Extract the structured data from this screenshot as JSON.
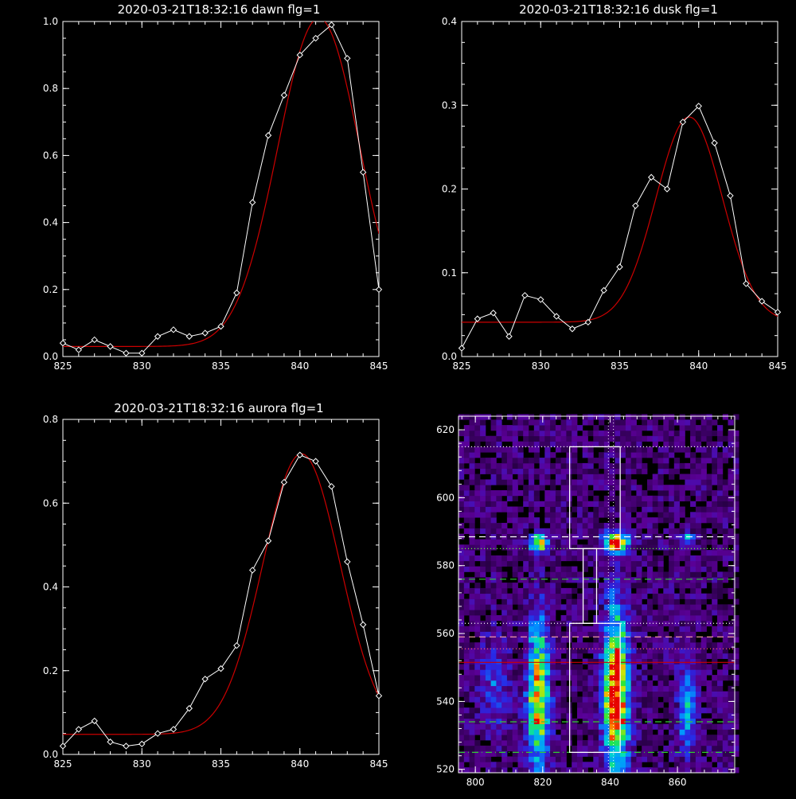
{
  "chart_data": [
    {
      "type": "line",
      "title": "2020-03-21T18:32:16 dawn flg=1",
      "xlim": [
        825,
        845
      ],
      "ylim": [
        0.0,
        1.0
      ],
      "xticks": [
        "825",
        "830",
        "835",
        "840",
        "845"
      ],
      "yticks": [
        "0.0",
        "0.2",
        "0.4",
        "0.6",
        "0.8",
        "1.0"
      ],
      "grid": false,
      "series": [
        {
          "kind": "measured",
          "color": "#ffffff",
          "marker": "diamond",
          "x": [
            825,
            826,
            827,
            828,
            829,
            830,
            831,
            832,
            833,
            834,
            835,
            836,
            837,
            838,
            839,
            840,
            841,
            842,
            843,
            844,
            845
          ],
          "y": [
            0.04,
            0.02,
            0.05,
            0.03,
            0.01,
            0.01,
            0.06,
            0.08,
            0.06,
            0.07,
            0.09,
            0.19,
            0.46,
            0.66,
            0.78,
            0.9,
            0.95,
            0.99,
            0.89,
            0.55,
            0.2
          ]
        },
        {
          "kind": "fit",
          "color": "#cc0000",
          "model": "gaussian",
          "offset": 0.03,
          "amplitude": 0.98,
          "center": 841.2,
          "sigma": 2.6
        }
      ]
    },
    {
      "type": "line",
      "title": "2020-03-21T18:32:16 dusk flg=1",
      "xlim": [
        825,
        845
      ],
      "ylim": [
        0.0,
        0.4
      ],
      "xticks": [
        "825",
        "830",
        "835",
        "840",
        "845"
      ],
      "yticks": [
        "0.0",
        "0.1",
        "0.2",
        "0.3",
        "0.4"
      ],
      "grid": false,
      "series": [
        {
          "kind": "measured",
          "color": "#ffffff",
          "marker": "diamond",
          "x": [
            825,
            826,
            827,
            828,
            829,
            830,
            831,
            832,
            833,
            834,
            835,
            836,
            837,
            838,
            839,
            840,
            841,
            842,
            843,
            844,
            845
          ],
          "y": [
            0.01,
            0.045,
            0.052,
            0.024,
            0.073,
            0.068,
            0.048,
            0.033,
            0.041,
            0.079,
            0.107,
            0.18,
            0.214,
            0.2,
            0.28,
            0.299,
            0.255,
            0.192,
            0.087,
            0.066,
            0.053
          ]
        },
        {
          "kind": "fit",
          "color": "#cc0000",
          "model": "gaussian",
          "offset": 0.041,
          "amplitude": 0.245,
          "center": 839.4,
          "sigma": 2.1
        }
      ]
    },
    {
      "type": "line",
      "title": "2020-03-21T18:32:16 aurora flg=1",
      "xlim": [
        825,
        845
      ],
      "ylim": [
        0.0,
        0.8
      ],
      "xticks": [
        "825",
        "830",
        "835",
        "840",
        "845"
      ],
      "yticks": [
        "0.0",
        "0.2",
        "0.4",
        "0.6",
        "0.8"
      ],
      "grid": false,
      "series": [
        {
          "kind": "measured",
          "color": "#ffffff",
          "marker": "diamond",
          "x": [
            825,
            826,
            827,
            828,
            829,
            830,
            831,
            832,
            833,
            834,
            835,
            836,
            837,
            838,
            839,
            840,
            841,
            842,
            843,
            844,
            845
          ],
          "y": [
            0.02,
            0.06,
            0.08,
            0.03,
            0.02,
            0.025,
            0.05,
            0.06,
            0.11,
            0.18,
            0.205,
            0.26,
            0.44,
            0.51,
            0.65,
            0.715,
            0.7,
            0.64,
            0.46,
            0.31,
            0.14
          ]
        },
        {
          "kind": "fit",
          "color": "#cc0000",
          "model": "gaussian",
          "offset": 0.048,
          "amplitude": 0.67,
          "center": 840.1,
          "sigma": 2.45
        }
      ]
    },
    {
      "type": "heatmap",
      "title": "",
      "xlim": [
        795,
        877
      ],
      "ylim": [
        519,
        624
      ],
      "xticks": [
        "800",
        "820",
        "840",
        "860"
      ],
      "yticks": [
        "520",
        "540",
        "560",
        "580",
        "600",
        "620"
      ],
      "colormap": "rainbow",
      "bright_regions": [
        {
          "x": 818,
          "y": 586,
          "wx": 2.0,
          "wy": 1.5,
          "amp": 0.75
        },
        {
          "x": 841,
          "y": 586,
          "wx": 2.3,
          "wy": 2.0,
          "amp": 1.0
        },
        {
          "x": 862,
          "y": 587,
          "wx": 1.5,
          "wy": 1.5,
          "amp": 0.35
        },
        {
          "x": 818,
          "y": 541,
          "wx": 2.2,
          "wy": 15,
          "amp": 0.7
        },
        {
          "x": 841,
          "y": 542,
          "wx": 2.5,
          "wy": 16,
          "amp": 0.95
        },
        {
          "x": 862,
          "y": 538,
          "wx": 1.8,
          "wy": 10,
          "amp": 0.35
        },
        {
          "x": 805,
          "y": 545,
          "wx": 3.0,
          "wy": 10,
          "amp": 0.2
        }
      ],
      "boxes": [
        {
          "x0": 828,
          "x1": 843,
          "y0": 585,
          "y1": 615
        },
        {
          "x0": 832,
          "x1": 836,
          "y0": 563,
          "y1": 585
        },
        {
          "x0": 828,
          "x1": 843,
          "y0": 525,
          "y1": 563
        }
      ],
      "hlines": [
        {
          "y": 615,
          "color": "#ffffff",
          "style": "dotted"
        },
        {
          "y": 588.5,
          "color": "#ffffff",
          "style": "dashed"
        },
        {
          "y": 585,
          "color": "#66ff33",
          "style": "dotted"
        },
        {
          "y": 576,
          "color": "#33cc33",
          "style": "dashed"
        },
        {
          "y": 563,
          "color": "#ffffff",
          "style": "dotted"
        },
        {
          "y": 559,
          "color": "#ffaaaa",
          "style": "dashed"
        },
        {
          "y": 555.5,
          "color": "#ff6666",
          "style": "dotted"
        },
        {
          "y": 551.5,
          "color": "#cc0000",
          "style": "solid"
        },
        {
          "y": 534,
          "color": "#33cc33",
          "style": "dashed"
        },
        {
          "y": 525,
          "color": "#33cc33",
          "style": "dashdot"
        }
      ],
      "vlines": [
        {
          "x": 839.5,
          "color": "#ffffff",
          "style": "dotted"
        },
        {
          "x": 841,
          "color": "#ffffff",
          "style": "dotted"
        }
      ]
    }
  ]
}
